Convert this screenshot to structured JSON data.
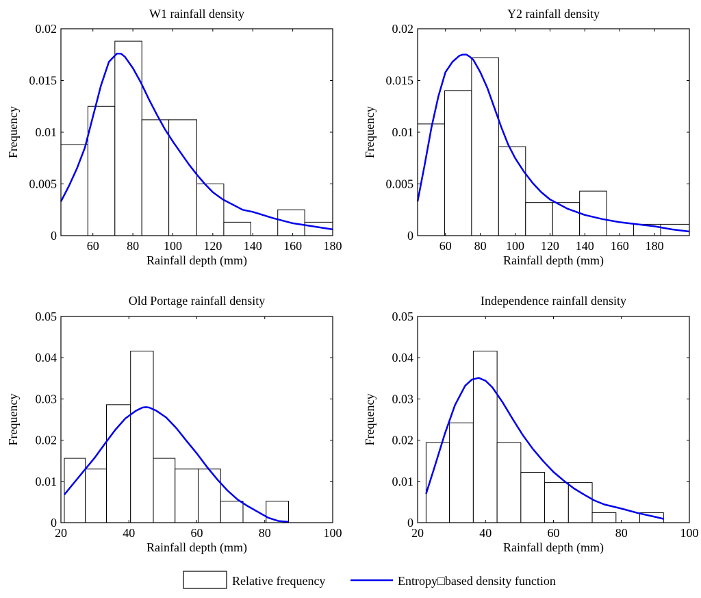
{
  "chart_data": [
    {
      "type": "histogram+line",
      "title": "W1 rainfall density",
      "xlabel": "Rainfall depth (mm)",
      "ylabel": "Frequency",
      "xlim": [
        44,
        180
      ],
      "ylim": [
        0,
        0.02
      ],
      "xticks": [
        60,
        80,
        100,
        120,
        140,
        160,
        180
      ],
      "xtick_labels": [
        "60",
        "80",
        "100",
        "120",
        "140",
        "160",
        "180"
      ],
      "yticks": [
        0,
        0.005,
        0.01,
        0.015,
        0.02
      ],
      "ytick_labels": [
        "0",
        "0.005",
        "0.01",
        "0.015",
        "0.02"
      ],
      "bins": [
        {
          "x0": 44,
          "x1": 57.5,
          "value": 0.0088
        },
        {
          "x0": 57.5,
          "x1": 71,
          "value": 0.0125
        },
        {
          "x0": 71,
          "x1": 84.5,
          "value": 0.0188
        },
        {
          "x0": 84.5,
          "x1": 98,
          "value": 0.0112
        },
        {
          "x0": 98,
          "x1": 112,
          "value": 0.0112
        },
        {
          "x0": 112,
          "x1": 125.5,
          "value": 0.005
        },
        {
          "x0": 125.5,
          "x1": 139,
          "value": 0.0013
        },
        {
          "x0": 139,
          "x1": 152.5,
          "value": 0
        },
        {
          "x0": 152.5,
          "x1": 166,
          "value": 0.0025
        },
        {
          "x0": 166,
          "x1": 180,
          "value": 0.0013
        }
      ],
      "curve": {
        "x": [
          44,
          48,
          52,
          56,
          60,
          64,
          68,
          72,
          74,
          76,
          80,
          84,
          88,
          92,
          96,
          100,
          104,
          108,
          112,
          116,
          120,
          125,
          130,
          135,
          140,
          150,
          160,
          170,
          180
        ],
        "y": [
          0.0033,
          0.0048,
          0.0065,
          0.0085,
          0.0115,
          0.0145,
          0.0168,
          0.0176,
          0.0176,
          0.0173,
          0.0162,
          0.0148,
          0.0132,
          0.0117,
          0.0103,
          0.0091,
          0.008,
          0.0069,
          0.0059,
          0.005,
          0.0042,
          0.0035,
          0.003,
          0.0025,
          0.0023,
          0.0017,
          0.0012,
          0.0009,
          0.0006
        ]
      }
    },
    {
      "type": "histogram+line",
      "title": "Y2 rainfall density",
      "xlabel": "Rainfall depth (mm)",
      "ylabel": "Frequency",
      "xlim": [
        44,
        200
      ],
      "ylim": [
        0,
        0.02
      ],
      "xticks": [
        60,
        80,
        100,
        120,
        140,
        160,
        180
      ],
      "xtick_labels": [
        "60",
        "80",
        "100",
        "120",
        "140",
        "160",
        "180"
      ],
      "yticks": [
        0,
        0.005,
        0.01,
        0.015,
        0.02
      ],
      "ytick_labels": [
        "0",
        "0.005",
        "0.01",
        "0.015",
        "0.02"
      ],
      "bins": [
        {
          "x0": 44,
          "x1": 59.5,
          "value": 0.0108
        },
        {
          "x0": 59.5,
          "x1": 75,
          "value": 0.014
        },
        {
          "x0": 75,
          "x1": 90.5,
          "value": 0.0172
        },
        {
          "x0": 90.5,
          "x1": 106,
          "value": 0.0086
        },
        {
          "x0": 106,
          "x1": 121.5,
          "value": 0.0032
        },
        {
          "x0": 121.5,
          "x1": 137,
          "value": 0.0032
        },
        {
          "x0": 137,
          "x1": 152.5,
          "value": 0.0043
        },
        {
          "x0": 152.5,
          "x1": 168,
          "value": 0
        },
        {
          "x0": 168,
          "x1": 183.5,
          "value": 0.0011
        },
        {
          "x0": 183.5,
          "x1": 200,
          "value": 0.0011
        }
      ],
      "curve": {
        "x": [
          44,
          48,
          52,
          56,
          60,
          64,
          68,
          70,
          72,
          74,
          76,
          80,
          84,
          88,
          92,
          96,
          100,
          105,
          110,
          115,
          120,
          130,
          140,
          150,
          160,
          170,
          180,
          190,
          200
        ],
        "y": [
          0.0033,
          0.0068,
          0.0105,
          0.0135,
          0.0158,
          0.0168,
          0.0174,
          0.0175,
          0.0175,
          0.0173,
          0.017,
          0.0158,
          0.0143,
          0.0124,
          0.0105,
          0.0088,
          0.0075,
          0.0062,
          0.0051,
          0.0042,
          0.0035,
          0.0026,
          0.002,
          0.0016,
          0.0013,
          0.0011,
          0.0009,
          0.0006,
          0.0004
        ]
      }
    },
    {
      "type": "histogram+line",
      "title": "Old Portage rainfall density",
      "xlabel": "Rainfall depth (mm)",
      "ylabel": "Frequency",
      "xlim": [
        20,
        100
      ],
      "ylim": [
        0,
        0.05
      ],
      "xticks": [
        20,
        40,
        60,
        80,
        100
      ],
      "xtick_labels": [
        "20",
        "40",
        "60",
        "80",
        "100"
      ],
      "yticks": [
        0,
        0.01,
        0.02,
        0.03,
        0.04,
        0.05
      ],
      "ytick_labels": [
        "0",
        "0.01",
        "0.02",
        "0.03",
        "0.04",
        "0.05"
      ],
      "bins": [
        {
          "x0": 21,
          "x1": 27.2,
          "value": 0.0156
        },
        {
          "x0": 27.2,
          "x1": 33.4,
          "value": 0.013
        },
        {
          "x0": 33.4,
          "x1": 40.5,
          "value": 0.0286
        },
        {
          "x0": 40.5,
          "x1": 47.2,
          "value": 0.0416
        },
        {
          "x0": 47.2,
          "x1": 53.6,
          "value": 0.0156
        },
        {
          "x0": 53.6,
          "x1": 60.4,
          "value": 0.013
        },
        {
          "x0": 60.4,
          "x1": 67,
          "value": 0.013
        },
        {
          "x0": 67,
          "x1": 73.6,
          "value": 0.0052
        },
        {
          "x0": 73.6,
          "x1": 80.4,
          "value": 0
        },
        {
          "x0": 80.4,
          "x1": 87,
          "value": 0.0052
        }
      ],
      "curve": {
        "x": [
          21,
          24,
          27,
          30,
          33,
          36,
          39,
          42,
          44,
          45,
          46,
          48,
          51,
          54,
          57,
          60,
          63,
          66,
          69,
          72,
          75,
          78,
          81,
          84,
          87
        ],
        "y": [
          0.0068,
          0.0098,
          0.0128,
          0.0158,
          0.0192,
          0.0225,
          0.0253,
          0.0271,
          0.0279,
          0.028,
          0.0279,
          0.0272,
          0.0255,
          0.0229,
          0.0198,
          0.0168,
          0.0135,
          0.0105,
          0.0078,
          0.0056,
          0.004,
          0.0026,
          0.0012,
          0.0004,
          0.0002
        ]
      }
    },
    {
      "type": "histogram+line",
      "title": "Independence rainfall density",
      "xlabel": "Rainfall depth (mm)",
      "ylabel": "Frequency",
      "xlim": [
        20,
        100
      ],
      "ylim": [
        0,
        0.05
      ],
      "xticks": [
        20,
        40,
        60,
        80,
        100
      ],
      "xtick_labels": [
        "20",
        "40",
        "60",
        "80",
        "100"
      ],
      "yticks": [
        0,
        0.01,
        0.02,
        0.03,
        0.04,
        0.05
      ],
      "ytick_labels": [
        "0",
        "0.01",
        "0.02",
        "0.03",
        "0.04",
        "0.05"
      ],
      "bins": [
        {
          "x0": 22.5,
          "x1": 29.4,
          "value": 0.0194
        },
        {
          "x0": 29.4,
          "x1": 36.4,
          "value": 0.0242
        },
        {
          "x0": 36.4,
          "x1": 43.4,
          "value": 0.0416
        },
        {
          "x0": 43.4,
          "x1": 50.4,
          "value": 0.0194
        },
        {
          "x0": 50.4,
          "x1": 57.4,
          "value": 0.0122
        },
        {
          "x0": 57.4,
          "x1": 64.4,
          "value": 0.0097
        },
        {
          "x0": 64.4,
          "x1": 71.4,
          "value": 0.0097
        },
        {
          "x0": 71.4,
          "x1": 78.4,
          "value": 0.0024
        },
        {
          "x0": 78.4,
          "x1": 85.4,
          "value": 0
        },
        {
          "x0": 85.4,
          "x1": 92.4,
          "value": 0.0024
        }
      ],
      "curve": {
        "x": [
          22.5,
          25,
          28,
          31,
          34,
          36,
          38,
          40,
          42,
          45,
          48,
          51,
          54,
          57,
          60,
          63,
          66,
          69,
          72,
          75,
          80,
          85,
          90,
          92.5
        ],
        "y": [
          0.007,
          0.0135,
          0.0215,
          0.0285,
          0.0332,
          0.0347,
          0.0351,
          0.0344,
          0.0328,
          0.0292,
          0.0251,
          0.0212,
          0.0178,
          0.0149,
          0.0123,
          0.0102,
          0.0083,
          0.0068,
          0.0054,
          0.0044,
          0.0034,
          0.0023,
          0.0014,
          0.0009
        ]
      }
    }
  ],
  "legend": {
    "items": [
      {
        "label": "Relative frequency",
        "kind": "box"
      },
      {
        "label": "Entropy□based density function",
        "kind": "line"
      }
    ]
  },
  "colors": {
    "curve": "#0000ee",
    "bar_stroke": "#000000",
    "axes": "#000000"
  }
}
